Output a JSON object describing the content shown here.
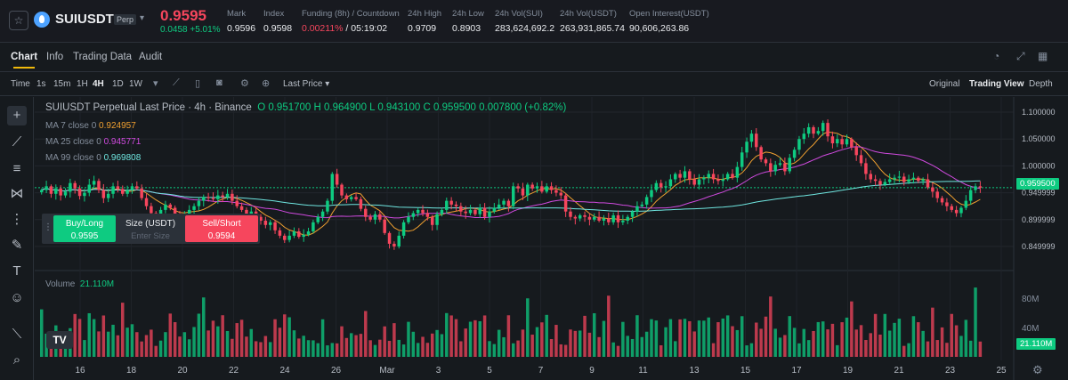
{
  "ticker": {
    "symbol": "SUIUSDT",
    "badge": "Perp",
    "last_price": "0.9595",
    "change": "0.0458 +5.01%",
    "stats": [
      {
        "label": "Mark",
        "value": "0.9596"
      },
      {
        "label": "Index",
        "value": "0.9598"
      },
      {
        "label": "Funding (8h) / Countdown",
        "value_a": "0.00211%",
        "value_b": " / 05:19:02"
      },
      {
        "label": "24h High",
        "value": "0.9709"
      },
      {
        "label": "24h Low",
        "value": "0.8903"
      },
      {
        "label": "24h Vol(SUI)",
        "value": "283,624,692.2"
      },
      {
        "label": "24h Vol(USDT)",
        "value": "263,931,865.74"
      },
      {
        "label": "Open Interest(USDT)",
        "value": "90,606,263.86"
      }
    ]
  },
  "tabs": [
    "Chart",
    "Info",
    "Trading Data",
    "Audit"
  ],
  "toolbar": {
    "time_label": "Time",
    "intervals": [
      "1s",
      "15m",
      "1H",
      "4H",
      "1D",
      "1W"
    ],
    "active_interval": "4H",
    "price_type": "Last Price",
    "views": [
      "Original",
      "Trading View",
      "Depth"
    ],
    "active_view": "Trading View"
  },
  "legend": {
    "title": "SUIUSDT Perpetual Last Price · 4h · Binance",
    "ohlc": "O 0.951700  H 0.964900  L 0.943100  C 0.959500  0.007800 (+0.82%)",
    "ma": [
      {
        "label": "MA 7 close 0",
        "value": "0.924957",
        "color": "#f0a030"
      },
      {
        "label": "MA 25 close 0",
        "value": "0.945771",
        "color": "#d04adf"
      },
      {
        "label": "MA 99 close 0",
        "value": "0.969808",
        "color": "#6fe6e0"
      }
    ]
  },
  "order": {
    "buy_label": "Buy/Long",
    "buy_price": "0.9595",
    "size_label": "Size (USDT)",
    "size_placeholder": "Enter Size",
    "sell_label": "Sell/Short",
    "sell_price": "0.9594"
  },
  "volume": {
    "label": "Volume",
    "value": "21.110M",
    "axis": [
      "80M",
      "40M"
    ]
  },
  "price_axis": [
    "1.100000",
    "1.050000",
    "1.000000",
    "0.949999",
    "0.899999",
    "0.849999"
  ],
  "price_tag": "0.959500",
  "volume_tag": "21.110M",
  "date_axis": [
    "16",
    "18",
    "20",
    "22",
    "24",
    "26",
    "Mar",
    "3",
    "5",
    "7",
    "9",
    "11",
    "13",
    "15",
    "17",
    "19",
    "21",
    "23",
    "25"
  ],
  "colors": {
    "up": "#0ecb81",
    "down": "#f6465d",
    "accent": "#f0b90b"
  },
  "chart_data": {
    "type": "candlestick",
    "interval": "4h",
    "price_range": [
      0.83,
      1.115
    ],
    "close_series": [
      0.955,
      0.962,
      0.948,
      0.958,
      0.945,
      0.952,
      0.968,
      0.958,
      0.944,
      0.95,
      0.965,
      0.972,
      0.955,
      0.94,
      0.948,
      0.962,
      0.957,
      0.948,
      0.955,
      0.962,
      0.958,
      0.94,
      0.925,
      0.912,
      0.905,
      0.918,
      0.928,
      0.922,
      0.91,
      0.898,
      0.905,
      0.918,
      0.925,
      0.935,
      0.942,
      0.94,
      0.938,
      0.945,
      0.942,
      0.948,
      0.935,
      0.925,
      0.918,
      0.908,
      0.915,
      0.905,
      0.898,
      0.89,
      0.895,
      0.88,
      0.87,
      0.862,
      0.87,
      0.878,
      0.868,
      0.872,
      0.878,
      0.895,
      0.905,
      0.915,
      0.935,
      0.985,
      0.965,
      0.945,
      0.938,
      0.942,
      0.938,
      0.92,
      0.905,
      0.9,
      0.91,
      0.9,
      0.875,
      0.855,
      0.85,
      0.87,
      0.895,
      0.905,
      0.912,
      0.918,
      0.912,
      0.905,
      0.89,
      0.91,
      0.918,
      0.935,
      0.928,
      0.925,
      0.915,
      0.912,
      0.918,
      0.91,
      0.922,
      0.905,
      0.915,
      0.922,
      0.928,
      0.935,
      0.925,
      0.962,
      0.958,
      0.945,
      0.965,
      0.958,
      0.962,
      0.952,
      0.962,
      0.955,
      0.95,
      0.945,
      0.915,
      0.905,
      0.902,
      0.908,
      0.905,
      0.9,
      0.905,
      0.898,
      0.902,
      0.895,
      0.908,
      0.895,
      0.898,
      0.905,
      0.915,
      0.925,
      0.928,
      0.942,
      0.955,
      0.968,
      0.96,
      0.962,
      0.975,
      0.985,
      0.978,
      0.99,
      0.975,
      0.965,
      0.975,
      0.978,
      0.985,
      0.975,
      0.972,
      0.975,
      0.985,
      0.978,
      0.998,
      1.025,
      1.045,
      1.06,
      1.035,
      1.012,
      1.005,
      0.99,
      1.002,
      1.005,
      0.99,
      1.015,
      1.03,
      1.05,
      1.06,
      1.072,
      1.06,
      1.065,
      1.08,
      1.055,
      1.042,
      1.05,
      1.04,
      1.05,
      1.035,
      1.02,
      1.005,
      0.985,
      0.975,
      0.972,
      0.965,
      0.97,
      0.975,
      0.978,
      0.98,
      0.97,
      0.975,
      0.978,
      0.972,
      0.975,
      0.96,
      0.952,
      0.94,
      0.932,
      0.925,
      0.918,
      0.912,
      0.922,
      0.935,
      0.955,
      0.962,
      0.9595
    ],
    "volume_max": 100
  }
}
